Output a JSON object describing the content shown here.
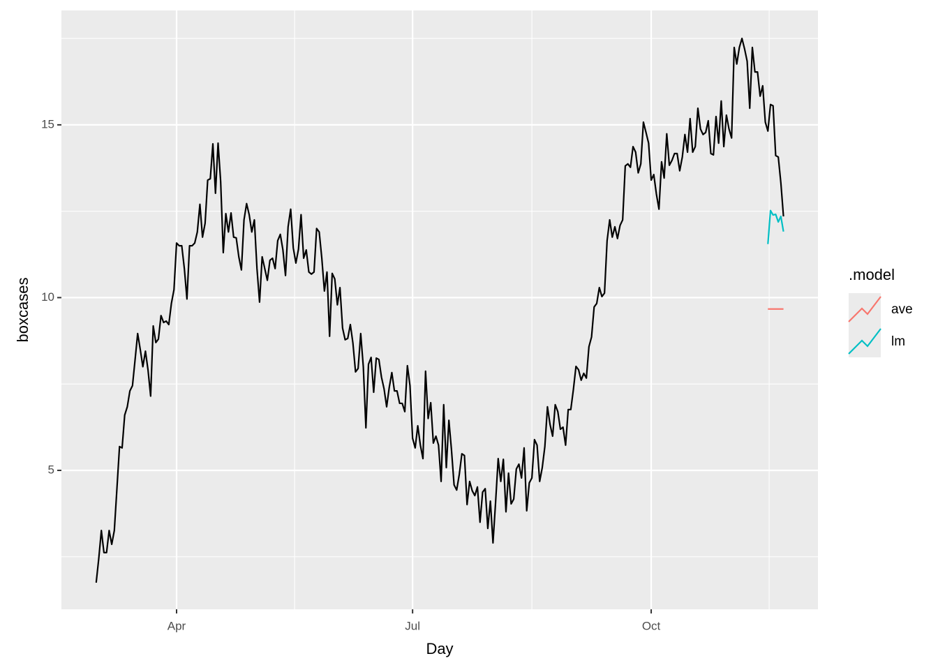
{
  "chart_data": {
    "type": "line",
    "x_label": "Day",
    "y_label": "boxcases",
    "legend_title": ".model",
    "color": "#000000",
    "x": [
      61,
      62,
      63,
      64,
      65,
      66,
      67,
      68,
      69,
      70,
      71,
      72,
      73,
      74,
      75,
      76,
      77,
      78,
      79,
      80,
      81,
      82,
      83,
      84,
      85,
      86,
      87,
      88,
      89,
      90,
      91,
      92,
      93,
      94,
      95,
      96,
      97,
      98,
      99,
      100,
      101,
      102,
      103,
      104,
      105,
      106,
      107,
      108,
      109,
      110,
      111,
      112,
      113,
      114,
      115,
      116,
      117,
      118,
      119,
      120,
      121,
      122,
      123,
      124,
      125,
      126,
      127,
      128,
      129,
      130,
      131,
      132,
      133,
      134,
      135,
      136,
      137,
      138,
      139,
      140,
      141,
      142,
      143,
      144,
      145,
      146,
      147,
      148,
      149,
      150,
      151,
      152,
      153,
      154,
      155,
      156,
      157,
      158,
      159,
      160,
      161,
      162,
      163,
      164,
      165,
      166,
      167,
      168,
      169,
      170,
      171,
      172,
      173,
      174,
      175,
      176,
      177,
      178,
      179,
      180,
      181,
      182,
      183,
      184,
      185,
      186,
      187,
      188,
      189,
      190,
      191,
      192,
      193,
      194,
      195,
      196,
      197,
      198,
      199,
      200,
      201,
      202,
      203,
      204,
      205,
      206,
      207,
      208,
      209,
      210,
      211,
      212,
      213,
      214,
      215,
      216,
      217,
      218,
      219,
      220,
      221,
      222,
      223,
      224,
      225,
      226,
      227,
      228,
      229,
      230,
      231,
      232,
      233,
      234,
      235,
      236,
      237,
      238,
      239,
      240,
      241,
      242,
      243,
      244,
      245,
      246,
      247,
      248,
      249,
      250,
      251,
      252,
      253,
      254,
      255,
      256,
      257,
      258,
      259,
      260,
      261,
      262,
      263,
      264,
      265,
      266,
      267,
      268,
      269,
      270,
      271,
      272,
      273,
      274,
      275,
      276,
      277,
      278,
      279,
      280,
      281,
      282,
      283,
      284,
      285,
      286,
      287,
      288,
      289,
      290,
      291,
      292,
      293,
      294,
      295,
      296,
      297,
      298,
      299,
      300,
      301,
      302,
      303,
      304,
      305,
      306,
      307,
      308,
      309,
      310,
      311,
      312,
      313,
      314,
      315,
      316,
      317,
      318,
      319,
      320,
      321,
      322,
      323,
      324,
      325,
      326
    ],
    "values": [
      1.75,
      2.45,
      3.26,
      2.62,
      2.62,
      3.26,
      2.86,
      3.26,
      4.47,
      5.69,
      5.65,
      6.6,
      6.84,
      7.3,
      7.45,
      8.2,
      8.96,
      8.5,
      8.0,
      8.45,
      7.9,
      7.15,
      9.18,
      8.7,
      8.8,
      9.48,
      9.28,
      9.32,
      9.22,
      9.83,
      10.23,
      11.58,
      11.5,
      11.5,
      10.84,
      9.96,
      11.5,
      11.5,
      11.58,
      11.9,
      12.7,
      11.75,
      12.15,
      13.4,
      13.44,
      14.45,
      13.02,
      14.47,
      13.36,
      11.3,
      12.43,
      11.9,
      12.45,
      11.75,
      11.73,
      11.18,
      10.8,
      12.25,
      12.72,
      12.4,
      11.9,
      12.25,
      10.84,
      9.87,
      11.18,
      10.84,
      10.5,
      11.08,
      11.14,
      10.84,
      11.65,
      11.83,
      11.38,
      10.64,
      12.05,
      12.56,
      11.44,
      11.0,
      11.4,
      12.4,
      11.14,
      11.38,
      10.74,
      10.68,
      10.74,
      12.0,
      11.9,
      11.14,
      10.19,
      10.74,
      8.88,
      10.7,
      10.54,
      9.79,
      10.29,
      9.12,
      8.78,
      8.82,
      9.22,
      8.68,
      7.85,
      7.95,
      8.96,
      8.0,
      6.23,
      8.07,
      8.27,
      7.26,
      8.25,
      8.21,
      7.7,
      7.36,
      6.84,
      7.4,
      7.83,
      7.3,
      7.3,
      6.94,
      6.94,
      6.7,
      8.03,
      7.45,
      5.93,
      5.65,
      6.29,
      5.73,
      5.34,
      7.87,
      6.5,
      6.96,
      5.79,
      5.99,
      5.73,
      4.68,
      6.9,
      5.08,
      6.45,
      5.59,
      4.58,
      4.43,
      4.88,
      5.48,
      5.43,
      4.01,
      4.68,
      4.41,
      4.27,
      4.52,
      3.5,
      4.37,
      4.47,
      3.32,
      4.11,
      2.9,
      4.07,
      5.34,
      4.68,
      5.32,
      3.8,
      4.92,
      4.03,
      4.17,
      5.04,
      5.18,
      4.78,
      5.65,
      3.83,
      4.64,
      4.78,
      5.89,
      5.73,
      4.68,
      5.08,
      5.69,
      6.84,
      6.33,
      5.99,
      6.9,
      6.7,
      6.19,
      6.25,
      5.73,
      6.76,
      6.76,
      7.34,
      8.01,
      7.91,
      7.61,
      7.81,
      7.67,
      8.58,
      8.86,
      9.73,
      9.83,
      10.29,
      10.03,
      10.13,
      11.65,
      12.25,
      11.75,
      12.05,
      11.71,
      12.09,
      12.25,
      13.81,
      13.87,
      13.77,
      14.37,
      14.21,
      13.61,
      13.87,
      15.08,
      14.78,
      14.47,
      13.4,
      13.56,
      13.0,
      12.56,
      13.93,
      13.46,
      14.74,
      13.83,
      13.97,
      14.17,
      14.17,
      13.67,
      14.07,
      14.72,
      14.21,
      15.18,
      14.21,
      14.37,
      15.48,
      14.88,
      14.72,
      14.78,
      15.12,
      14.17,
      14.13,
      15.24,
      14.47,
      15.69,
      14.37,
      15.28,
      14.88,
      14.62,
      17.24,
      16.76,
      17.24,
      17.5,
      17.2,
      16.84,
      15.48,
      17.24,
      16.53,
      16.53,
      15.83,
      16.13,
      15.08,
      14.82,
      15.59,
      15.55,
      14.11,
      14.07,
      13.32,
      12.35
    ],
    "series": [
      {
        "name": "ave",
        "color": "#F8766D",
        "x": [
          320,
          321,
          322,
          323,
          324,
          325,
          326
        ],
        "values": [
          9.67,
          9.67,
          9.67,
          9.67,
          9.67,
          9.67,
          9.67
        ]
      },
      {
        "name": "lm",
        "color": "#00BFC4",
        "x": [
          320,
          321,
          322,
          323,
          324,
          325,
          326
        ],
        "values": [
          11.55,
          12.52,
          12.39,
          12.41,
          12.19,
          12.35,
          11.91
        ]
      }
    ],
    "xlim": [
      47.6,
      339.3
    ],
    "ylim": [
      0.98,
      18.31
    ],
    "xticks": [
      {
        "value": 92,
        "label": "Apr"
      },
      {
        "value": 183,
        "label": "Jul"
      },
      {
        "value": 275,
        "label": "Oct"
      }
    ],
    "yticks": [
      5,
      10,
      15
    ],
    "x_minor_ticks": [
      137.5,
      229,
      320.5
    ],
    "y_minor_ticks": [
      2.5,
      7.5,
      12.5,
      17.5
    ],
    "grid": true
  }
}
